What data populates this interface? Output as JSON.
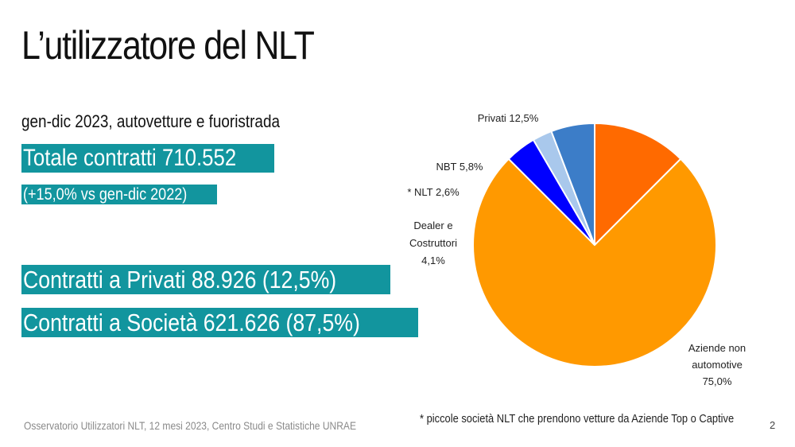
{
  "slide": {
    "title": "L’utilizzatore del NLT",
    "subtitle": "gen-dic 2023, autovetture e fuoristrada",
    "total_contracts": "Totale contratti 710.552",
    "yoy": "(+15,0% vs  gen-dic 2022)",
    "private_contracts": "Contratti a Privati  88.926 (12,5%)",
    "company_contracts": "Contratti a Società 621.626 (87,5%)",
    "footer_source": "Osservatorio Utilizzatori NLT, 12 mesi 2023, Centro Studi e Statistiche UNRAE",
    "footnote": "* piccole società NLT che prendono vetture da Aziende Top o Captive",
    "page_number": "2"
  },
  "chart_data": {
    "type": "pie",
    "title": "",
    "slices": [
      {
        "label": "Privati 12,5%",
        "lines": [
          "Privati 12,5%"
        ],
        "value": 12.5,
        "color": "#ff6a00"
      },
      {
        "label": "Aziende non automotive 75,0%",
        "lines": [
          "Aziende non",
          "automotive",
          "75,0%"
        ],
        "value": 75.0,
        "color": "#ff9900"
      },
      {
        "label": "Dealer e Costruttori 4,1%",
        "lines": [
          "Dealer e",
          "Costruttori",
          "4,1%"
        ],
        "value": 4.1,
        "color": "#0000ff"
      },
      {
        "label": "* NLT 2,6%",
        "lines": [
          "* NLT 2,6%"
        ],
        "value": 2.6,
        "color": "#a9c8ec"
      },
      {
        "label": "NBT 5,8%",
        "lines": [
          "NBT 5,8%"
        ],
        "value": 5.8,
        "color": "#3c7dc8"
      }
    ]
  }
}
